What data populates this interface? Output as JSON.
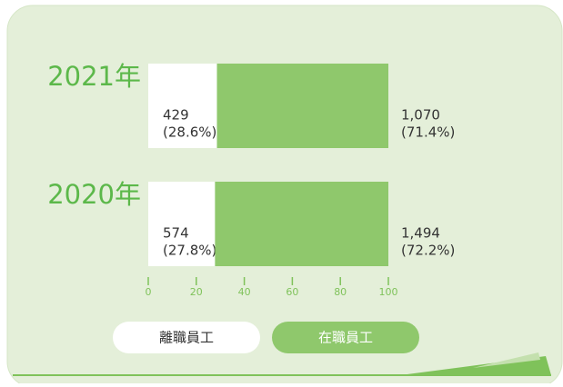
{
  "chart_data": {
    "type": "stacked_bar_horizontal",
    "categories": [
      "2021年",
      "2020年"
    ],
    "series": [
      {
        "name": "離職員工",
        "color": "#ffffff",
        "values": [
          28.6,
          27.8
        ],
        "value_labels": [
          "(28.6%)",
          "(27.8%)"
        ],
        "count_labels": [
          "429",
          "574"
        ]
      },
      {
        "name": "在職員工",
        "color": "#8fc86c",
        "values": [
          71.4,
          72.2
        ],
        "value_labels": [
          "(71.4%)",
          "(72.2%)"
        ],
        "count_labels": [
          "1,070",
          "1,494"
        ]
      }
    ],
    "xlim": [
      0,
      100
    ],
    "xticks": [
      0,
      20,
      40,
      60,
      80,
      100
    ]
  }
}
